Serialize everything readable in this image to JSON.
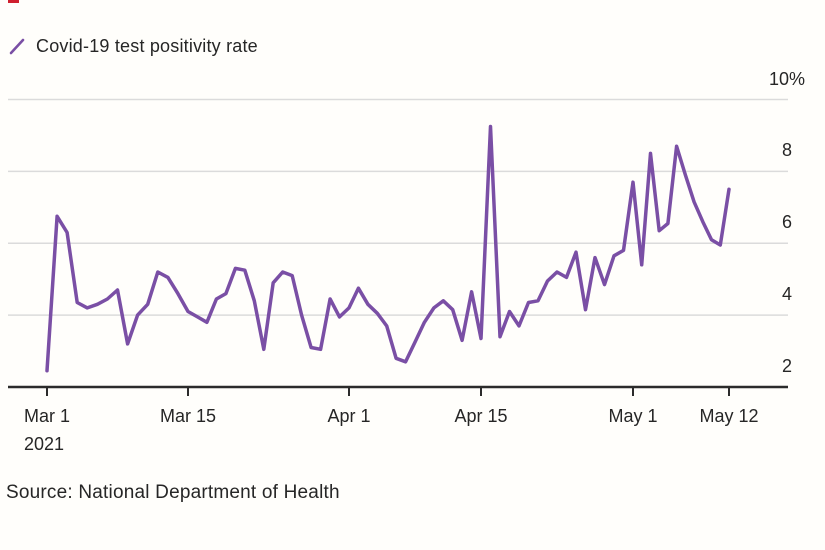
{
  "colors": {
    "line": "#7a4fa5",
    "grid": "#dbdbdb",
    "axis": "#2b2b2b",
    "text": "#262626",
    "background": "#fffefb",
    "red_mark": "#cf1f2e"
  },
  "legend": {
    "marker_icon": "purple-slash-icon",
    "label": "Covid-19 test positivity rate"
  },
  "chart_data": {
    "type": "line",
    "title": "Covid-19 test positivity rate",
    "unit": "%",
    "xlabel": "",
    "ylabel": "",
    "ylim": [
      2,
      10
    ],
    "grid": "horizontal",
    "legend_position": "top-left",
    "series": [
      {
        "name": "Covid-19 test positivity rate",
        "color": "#7a4fa5",
        "start_date": "2021-03-01",
        "end_date": "2021-05-12",
        "frequency": "daily",
        "values": [
          2.45,
          6.75,
          6.3,
          4.35,
          4.2,
          4.3,
          4.45,
          4.7,
          3.2,
          4.0,
          4.3,
          5.2,
          5.05,
          4.6,
          4.1,
          3.95,
          3.8,
          4.45,
          4.6,
          5.3,
          5.25,
          4.4,
          3.05,
          4.9,
          5.2,
          5.1,
          4.0,
          3.1,
          3.05,
          4.45,
          3.95,
          4.2,
          4.75,
          4.3,
          4.05,
          3.7,
          2.8,
          2.7,
          3.25,
          3.8,
          4.2,
          4.4,
          4.15,
          3.3,
          4.65,
          3.35,
          9.25,
          3.4,
          4.1,
          3.7,
          4.35,
          4.4,
          4.95,
          5.2,
          5.05,
          5.75,
          4.15,
          5.6,
          4.85,
          5.65,
          5.8,
          7.7,
          5.4,
          8.5,
          6.35,
          6.55,
          8.7,
          7.9,
          7.15,
          6.6,
          6.1,
          5.95,
          7.5
        ]
      }
    ],
    "x_ticks": [
      {
        "label": "Mar 1",
        "sublabel": "2021",
        "day_index": 0
      },
      {
        "label": "Mar 15",
        "sublabel": "",
        "day_index": 14
      },
      {
        "label": "Apr 1",
        "sublabel": "",
        "day_index": 31
      },
      {
        "label": "Apr 15",
        "sublabel": "",
        "day_index": 45
      },
      {
        "label": "May 1",
        "sublabel": "",
        "day_index": 61
      },
      {
        "label": "May 12",
        "sublabel": "",
        "day_index": 72
      }
    ],
    "y_ticks": [
      {
        "label": "2",
        "value": 2
      },
      {
        "label": "4",
        "value": 4
      },
      {
        "label": "6",
        "value": 6
      },
      {
        "label": "8",
        "value": 8
      },
      {
        "label": "10%",
        "value": 10
      }
    ]
  },
  "source": {
    "text": "Source: National Department of Health"
  }
}
